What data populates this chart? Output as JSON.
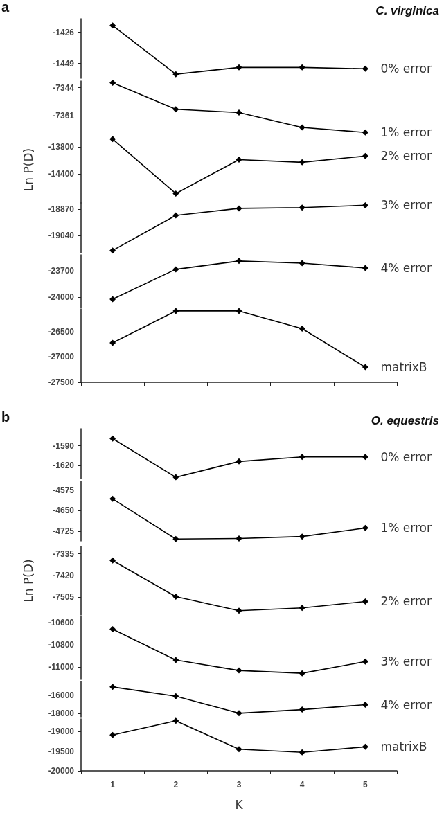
{
  "chart_data": [
    {
      "type": "line",
      "title": "C. virginica",
      "annotations": [
        "a"
      ],
      "categories": [
        "1",
        "2",
        "3",
        "4",
        "5"
      ],
      "tick_labels": "y",
      "marker": "diamond",
      "ylim": [
        -1460,
        -1416
      ],
      "yticks": [
        -1449,
        -1426
      ],
      "series": [
        {
          "name": "0% error",
          "color": "#000000",
          "values": [
            -1421,
            -1457,
            -1452,
            -1452,
            -1453
          ]
        }
      ]
    },
    {
      "type": "line",
      "categories": [
        "1",
        "2",
        "3",
        "4",
        "5"
      ],
      "tick_labels": "y",
      "marker": "diamond",
      "ylim": [
        -7373,
        -7340
      ],
      "yticks": [
        -7361,
        -7344
      ],
      "series": [
        {
          "name": "1% error",
          "color": "#000000",
          "values": [
            -7341,
            -7357,
            -7359,
            -7368,
            -7371
          ]
        }
      ]
    },
    {
      "type": "line",
      "ylabel": "Ln P(D)",
      "categories": [
        "1",
        "2",
        "3",
        "4",
        "5"
      ],
      "tick_labels": "y",
      "marker": "diamond",
      "ylim": [
        -15050,
        -13560
      ],
      "yticks": [
        -14400,
        -13800
      ],
      "series": [
        {
          "name": "2% error",
          "color": "#000000",
          "values": [
            -13620,
            -14840,
            -14080,
            -14140,
            -14000
          ]
        }
      ]
    },
    {
      "type": "line",
      "categories": [
        "1",
        "2",
        "3",
        "4",
        "5"
      ],
      "tick_labels": "y",
      "marker": "diamond",
      "ylim": [
        -19150,
        -18830
      ],
      "yticks": [
        -19040,
        -18870
      ],
      "series": [
        {
          "name": "3% error",
          "color": "#000000",
          "values": [
            -19135,
            -18910,
            -18865,
            -18860,
            -18845
          ]
        }
      ]
    },
    {
      "type": "line",
      "categories": [
        "1",
        "2",
        "3",
        "4",
        "5"
      ],
      "tick_labels": "y",
      "marker": "diamond",
      "ylim": [
        -24120,
        -23520
      ],
      "yticks": [
        -24000,
        -23700
      ],
      "series": [
        {
          "name": "4% error",
          "color": "#000000",
          "values": [
            -24025,
            -23685,
            -23590,
            -23615,
            -23670
          ]
        }
      ]
    },
    {
      "type": "line",
      "categories": [
        "1",
        "2",
        "3",
        "4",
        "5"
      ],
      "tick_labels": "y",
      "marker": "diamond",
      "ylim": [
        -27500,
        -26050
      ],
      "yticks": [
        -27500,
        -27000,
        -26500
      ],
      "series": [
        {
          "name": "matrixB",
          "color": "#000000",
          "values": [
            -26720,
            -26090,
            -26090,
            -26440,
            -27200
          ]
        }
      ]
    },
    {
      "type": "line",
      "title": "O. equestris",
      "annotations": [
        "b"
      ],
      "categories": [
        "1",
        "2",
        "3",
        "4",
        "5"
      ],
      "tick_labels": "y",
      "marker": "diamond",
      "ylim": [
        -1640,
        -1564
      ],
      "yticks": [
        -1620,
        -1590
      ],
      "series": [
        {
          "name": "0% error",
          "color": "#000000",
          "values": [
            -1579,
            -1638,
            -1614,
            -1607,
            -1607
          ]
        }
      ]
    },
    {
      "type": "line",
      "categories": [
        "1",
        "2",
        "3",
        "4",
        "5"
      ],
      "tick_labels": "y",
      "marker": "diamond",
      "ylim": [
        -4760,
        -4543
      ],
      "yticks": [
        -4725,
        -4650,
        -4575
      ],
      "series": [
        {
          "name": "1% error",
          "color": "#000000",
          "values": [
            -4607,
            -4753,
            -4751,
            -4744,
            -4713
          ]
        }
      ]
    },
    {
      "type": "line",
      "ylabel": "Ln P(D)",
      "categories": [
        "1",
        "2",
        "3",
        "4",
        "5"
      ],
      "tick_labels": "y",
      "marker": "diamond",
      "ylim": [
        -7575,
        -7306
      ],
      "yticks": [
        -7505,
        -7420,
        -7335
      ],
      "series": [
        {
          "name": "2% error",
          "color": "#000000",
          "values": [
            -7361,
            -7503,
            -7558,
            -7547,
            -7522
          ]
        }
      ]
    },
    {
      "type": "line",
      "categories": [
        "1",
        "2",
        "3",
        "4",
        "5"
      ],
      "tick_labels": "y",
      "marker": "diamond",
      "ylim": [
        -11110,
        -10545
      ],
      "yticks": [
        -11000,
        -10800,
        -10600
      ],
      "series": [
        {
          "name": "3% error",
          "color": "#000000",
          "values": [
            -10660,
            -10936,
            -11030,
            -11055,
            -10950
          ]
        }
      ]
    },
    {
      "type": "line",
      "categories": [
        "1",
        "2",
        "3",
        "4",
        "5"
      ],
      "tick_labels": "y",
      "marker": "diamond",
      "ylim": [
        -18470,
        -14500
      ],
      "yticks": [
        -18000,
        -16000
      ],
      "series": [
        {
          "name": "4% error",
          "color": "#000000",
          "values": [
            -15100,
            -16120,
            -18000,
            -17600,
            -17060
          ]
        }
      ]
    },
    {
      "type": "line",
      "xlabel": "K",
      "categories": [
        "1",
        "2",
        "3",
        "4",
        "5"
      ],
      "marker": "diamond",
      "ylim": [
        -20000,
        -18680
      ],
      "yticks": [
        -20000,
        -19500,
        -19000
      ],
      "series": [
        {
          "name": "matrixB",
          "color": "#000000",
          "values": [
            -19090,
            -18730,
            -19450,
            -19530,
            -19390
          ]
        }
      ]
    }
  ]
}
